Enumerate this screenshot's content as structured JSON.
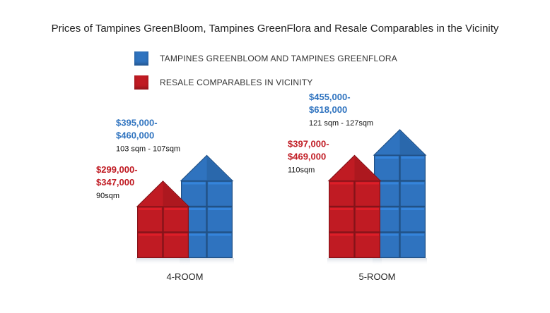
{
  "chart_data": {
    "type": "bar",
    "title": "Prices of Tampines GreenBloom, Tampines GreenFlora and Resale Comparables in the Vicinity",
    "categories": [
      "4-ROOM",
      "5-ROOM"
    ],
    "legend_position": "top",
    "series": [
      {
        "name": "TAMPINES GREENBLOOM AND TAMPINES GREENFLORA",
        "color": "#2f73bf",
        "price_low": [
          395000,
          455000
        ],
        "price_high": [
          460000,
          618000
        ],
        "price_low_label": [
          "$395,000-",
          "$455,000-"
        ],
        "price_high_label": [
          "$460,000",
          "$618,000"
        ],
        "area_label": [
          "103 sqm - 107sqm",
          "121 sqm - 127sqm"
        ],
        "blocks": [
          3,
          4
        ]
      },
      {
        "name": "RESALE COMPARABLES IN VICINITY",
        "color": "#c01b23",
        "price_low": [
          299000,
          397000
        ],
        "price_high": [
          347000,
          469000
        ],
        "price_low_label": [
          "$299,000-",
          "$397,000-"
        ],
        "price_high_label": [
          "$347,000",
          "$469,000"
        ],
        "area_label": [
          "90sqm",
          "110sqm"
        ],
        "blocks": [
          2,
          3
        ]
      }
    ]
  }
}
